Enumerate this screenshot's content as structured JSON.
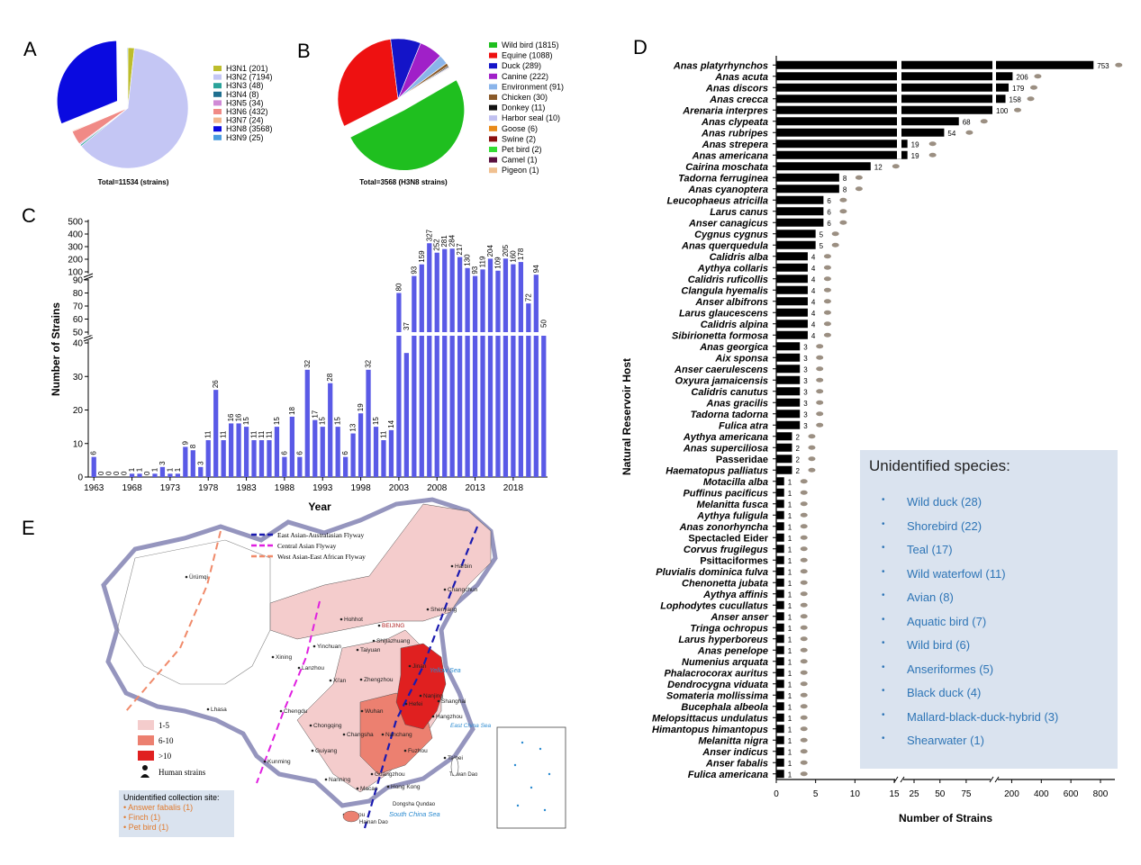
{
  "panels": {
    "a": {
      "letter": "A",
      "total_label": "Total=11534 (strains)"
    },
    "b": {
      "letter": "B",
      "total_label": "Total=3568 (H3N8 strains)"
    },
    "c": {
      "letter": "C"
    },
    "d": {
      "letter": "D"
    },
    "e": {
      "letter": "E"
    }
  },
  "chart_data": [
    {
      "id": "A",
      "type": "pie",
      "slices": [
        {
          "label": "H3N1 (201)",
          "value": 201,
          "color": "#bdbd2c"
        },
        {
          "label": "H3N2 (7194)",
          "value": 7194,
          "color": "#c4c6f4"
        },
        {
          "label": "H3N3 (48)",
          "value": 48,
          "color": "#2aa39a"
        },
        {
          "label": "H3N4 (8)",
          "value": 8,
          "color": "#1f6f8f"
        },
        {
          "label": "H3N5 (34)",
          "value": 34,
          "color": "#d08ad6"
        },
        {
          "label": "H3N6 (432)",
          "value": 432,
          "color": "#f08a86"
        },
        {
          "label": "H3N7 (24)",
          "value": 24,
          "color": "#f2b78e"
        },
        {
          "label": "H3N8 (3568)",
          "value": 3568,
          "color": "#0a0ae0",
          "exploded": true
        },
        {
          "label": "H3N9 (25)",
          "value": 25,
          "color": "#4a9ce0"
        }
      ]
    },
    {
      "id": "B",
      "type": "pie",
      "slices": [
        {
          "label": "Wild bird (1815)",
          "value": 1815,
          "color": "#1fbf1f",
          "exploded": true
        },
        {
          "label": "Equine (1088)",
          "value": 1088,
          "color": "#ee1111"
        },
        {
          "label": "Duck (289)",
          "value": 289,
          "color": "#1414c8"
        },
        {
          "label": "Canine (222)",
          "value": 222,
          "color": "#a020c8"
        },
        {
          "label": "Environment (91)",
          "value": 91,
          "color": "#8ab4ea"
        },
        {
          "label": "Chicken (30)",
          "value": 30,
          "color": "#8a5a2a"
        },
        {
          "label": "Donkey (11)",
          "value": 11,
          "color": "#111111"
        },
        {
          "label": "Harbor seal (10)",
          "value": 10,
          "color": "#c0c0f0"
        },
        {
          "label": "Goose (6)",
          "value": 6,
          "color": "#e88a1a"
        },
        {
          "label": "Swine (2)",
          "value": 2,
          "color": "#8a1010"
        },
        {
          "label": "Pet bird (2)",
          "value": 2,
          "color": "#33dd33"
        },
        {
          "label": "Camel (1)",
          "value": 1,
          "color": "#5a1040"
        },
        {
          "label": "Pigeon (1)",
          "value": 1,
          "color": "#f0c090"
        }
      ]
    },
    {
      "id": "C",
      "type": "bar",
      "title": "",
      "xlabel": "Year",
      "ylabel": "Number of Strains",
      "color": "#5a5ae6",
      "x": [
        1963,
        1964,
        1965,
        1966,
        1967,
        1968,
        1969,
        1970,
        1971,
        1972,
        1973,
        1974,
        1975,
        1976,
        1977,
        1978,
        1979,
        1980,
        1981,
        1982,
        1983,
        1984,
        1985,
        1986,
        1987,
        1988,
        1989,
        1990,
        1991,
        1992,
        1993,
        1994,
        1995,
        1996,
        1997,
        1998,
        1999,
        2000,
        2001,
        2002,
        2003,
        2004,
        2005,
        2006,
        2007,
        2008,
        2009,
        2010,
        2011,
        2012,
        2013,
        2014,
        2015,
        2016,
        2017,
        2018,
        2019,
        2020,
        2021,
        2022
      ],
      "values": [
        6,
        0,
        0,
        0,
        0,
        1,
        1,
        0,
        1,
        3,
        1,
        1,
        9,
        8,
        3,
        11,
        26,
        11,
        16,
        16,
        15,
        11,
        11,
        11,
        15,
        6,
        18,
        6,
        32,
        17,
        15,
        28,
        15,
        6,
        13,
        19,
        32,
        15,
        11,
        14,
        80,
        37,
        93,
        159,
        327,
        252,
        281,
        284,
        217,
        130,
        93,
        119,
        204,
        109,
        205,
        160,
        178,
        72,
        94,
        50
      ],
      "xticks": [
        1963,
        1968,
        1973,
        1978,
        1983,
        1988,
        1993,
        1998,
        2003,
        2008,
        2013,
        2018
      ],
      "yticks_lower": [
        0,
        10,
        20,
        30,
        40,
        50
      ],
      "yticks_middle": [
        50,
        60,
        70,
        80,
        90
      ],
      "yticks_upper": [
        100,
        200,
        300,
        400,
        500
      ]
    },
    {
      "id": "D",
      "type": "bar",
      "orientation": "horizontal",
      "xlabel": "Number of Strains",
      "ylabel": "Natural Reservoir Host",
      "color": "#000000",
      "xticks": [
        "0",
        "5",
        "10",
        "15",
        "25",
        "50",
        "75",
        "200",
        "400",
        "600",
        "800"
      ],
      "categories": [
        "Anas platyrhynchos",
        "Anas acuta",
        "Anas discors",
        "Anas crecca",
        "Arenaria interpres",
        "Anas clypeata",
        "Anas rubripes",
        "Anas strepera",
        "Anas americana",
        "Cairina moschata",
        "Tadorna ferruginea",
        "Anas cyanoptera",
        "Leucophaeus atricilla",
        "Larus canus",
        "Anser canagicus",
        "Cygnus cygnus",
        "Anas querquedula",
        "Calidris alba",
        "Aythya collaris",
        "Calidris ruficollis",
        "Clangula hyemalis",
        "Anser albifrons",
        "Larus glaucescens",
        "Calidris alpina",
        "Sibirionetta formosa",
        "Anas georgica",
        "Aix sponsa",
        "Anser caerulescens",
        "Oxyura jamaicensis",
        "Calidris canutus",
        "Anas gracilis",
        "Tadorna tadorna",
        "Fulica atra",
        "Aythya americana",
        "Anas superciliosa",
        "Passeridae",
        "Haematopus palliatus",
        "Motacilla alba",
        "Puffinus pacificus",
        "Melanitta fusca",
        "Aythya fuligula",
        "Anas zonorhyncha",
        "Spectacled Eider",
        "Corvus frugilegus",
        "Psittaciformes",
        "Pluvialis dominica fulva",
        "Chenonetta jubata",
        "Aythya affinis",
        "Lophodytes cucullatus",
        "Anser anser",
        "Tringa ochropus",
        "Larus hyperboreus",
        "Anas penelope",
        "Numenius arquata",
        "Phalacrocorax auritus",
        "Dendrocygna viduata",
        "Somateria mollissima",
        "Bucephala albeola",
        "Melopsittacus undulatus",
        "Himantopus himantopus",
        "Melanitta nigra",
        "Anser indicus",
        "Anser fabalis",
        "Fulica americana"
      ],
      "values": [
        753,
        206,
        179,
        158,
        100,
        68,
        54,
        19,
        19,
        12,
        8,
        8,
        6,
        6,
        6,
        5,
        5,
        4,
        4,
        4,
        4,
        4,
        4,
        4,
        4,
        3,
        3,
        3,
        3,
        3,
        3,
        3,
        3,
        2,
        2,
        2,
        2,
        1,
        1,
        1,
        1,
        1,
        1,
        1,
        1,
        1,
        1,
        1,
        1,
        1,
        1,
        1,
        1,
        1,
        1,
        1,
        1,
        1,
        1,
        1,
        1,
        1,
        1,
        1
      ],
      "unidentified_title": "Unidentified species:",
      "unidentified": [
        "Wild duck (28)",
        "Shorebird (22)",
        "Teal (17)",
        "Wild waterfowl (11)",
        "Avian (8)",
        "Aquatic bird (7)",
        "Wild bird (6)",
        "Anseriformes (5)",
        "Black duck (4)",
        "Mallard-black-duck-hybrid (3)",
        "Shearwater (1)"
      ]
    }
  ],
  "map": {
    "flyways": [
      "East Asian-Australasian Flyway",
      "Central Asian Flyway",
      "West Asian-East African Flyway"
    ],
    "flyway_colors": [
      "#1a1ab0",
      "#e020e0",
      "#f08a6a"
    ],
    "legend_bins": [
      "1-5",
      "6-10",
      ">10"
    ],
    "legend_colors": [
      "#f4cccc",
      "#ec8070",
      "#e02020"
    ],
    "human_label": "Human strains",
    "unidentified_title": "Unidentified collection site:",
    "unidentified_items": [
      "Answer fabalis (1)",
      "Finch (1)",
      "Pet bird (1)"
    ],
    "cities": [
      "Ürümqi",
      "Harbin",
      "Changchun",
      "Shenyang",
      "Hohhot",
      "BEIJING",
      "Shijiazhuang",
      "Taiyuan",
      "Yinchuan",
      "Xining",
      "Lanzhou",
      "Xi'an",
      "Zhengzhou",
      "Jinan",
      "Nanjing",
      "Shanghai",
      "Hefei",
      "Wuhan",
      "Chengdu",
      "Chongqing",
      "Changsha",
      "Nanchang",
      "Hangzhou",
      "Fuzhou",
      "Guiyang",
      "Kunming",
      "Nanning",
      "Guangzhou",
      "Macao",
      "Hong Kong",
      "Haikou",
      "Lhasa",
      "Taibei"
    ],
    "seas": [
      "Yellow Sea",
      "East China Sea",
      "South China Sea"
    ],
    "islands": [
      "Hainan Dao",
      "Taiwan Dao",
      "Dongsha Qundao"
    ]
  }
}
